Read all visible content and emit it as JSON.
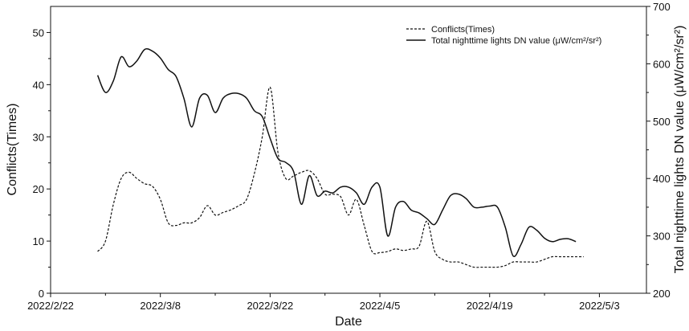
{
  "chart_data": {
    "type": "line",
    "xlabel": "Date",
    "ylabel_left": "Conflicts(Times)",
    "ylabel_right": "Total nighttime lights DN value (μW/cm²/sr²)",
    "x_ticks": [
      "2022/2/22",
      "2022/3/8",
      "2022/3/22",
      "2022/4/5",
      "2022/4/19",
      "2022/5/3"
    ],
    "x_range": [
      "2022/2/22",
      "2022/5/9"
    ],
    "y_left_range": [
      0,
      55
    ],
    "y_left_ticks": [
      0,
      10,
      20,
      30,
      40,
      50
    ],
    "y_right_range": [
      200,
      700
    ],
    "y_right_ticks": [
      200,
      300,
      400,
      500,
      600,
      700
    ],
    "legend_position": "top-right",
    "grid": false,
    "series": [
      {
        "name": "Conflicts(Times)",
        "axis": "left",
        "style": "dashed",
        "points": [
          [
            "2022/2/28",
            8
          ],
          [
            "2022/3/1",
            10
          ],
          [
            "2022/3/2",
            17
          ],
          [
            "2022/3/3",
            22
          ],
          [
            "2022/3/4",
            23.2
          ],
          [
            "2022/3/5",
            22
          ],
          [
            "2022/3/6",
            21
          ],
          [
            "2022/3/7",
            20.5
          ],
          [
            "2022/3/8",
            18
          ],
          [
            "2022/3/9",
            13.5
          ],
          [
            "2022/3/10",
            13
          ],
          [
            "2022/3/11",
            13.5
          ],
          [
            "2022/3/12",
            13.5
          ],
          [
            "2022/3/13",
            14.5
          ],
          [
            "2022/3/14",
            16.8
          ],
          [
            "2022/3/15",
            15
          ],
          [
            "2022/3/16",
            15.5
          ],
          [
            "2022/3/17",
            16
          ],
          [
            "2022/3/18",
            16.8
          ],
          [
            "2022/3/19",
            18
          ],
          [
            "2022/3/20",
            23
          ],
          [
            "2022/3/21",
            30
          ],
          [
            "2022/3/22",
            39.5
          ],
          [
            "2022/3/23",
            27
          ],
          [
            "2022/3/24",
            22
          ],
          [
            "2022/3/25",
            22.5
          ],
          [
            "2022/3/26",
            23.2
          ],
          [
            "2022/3/27",
            23.5
          ],
          [
            "2022/3/28",
            22
          ],
          [
            "2022/3/29",
            19
          ],
          [
            "2022/3/30",
            19
          ],
          [
            "2022/3/31",
            18.5
          ],
          [
            "2022/4/1",
            15
          ],
          [
            "2022/4/2",
            18
          ],
          [
            "2022/4/3",
            13
          ],
          [
            "2022/4/4",
            8
          ],
          [
            "2022/4/5",
            7.8
          ],
          [
            "2022/4/6",
            8
          ],
          [
            "2022/4/7",
            8.5
          ],
          [
            "2022/4/8",
            8.2
          ],
          [
            "2022/4/9",
            8.5
          ],
          [
            "2022/4/10",
            9
          ],
          [
            "2022/4/11",
            13.8
          ],
          [
            "2022/4/12",
            8
          ],
          [
            "2022/4/13",
            6.5
          ],
          [
            "2022/4/14",
            6
          ],
          [
            "2022/4/15",
            6
          ],
          [
            "2022/4/16",
            5.5
          ],
          [
            "2022/4/17",
            5
          ],
          [
            "2022/4/18",
            5
          ],
          [
            "2022/4/19",
            5
          ],
          [
            "2022/4/20",
            5
          ],
          [
            "2022/4/21",
            5.3
          ],
          [
            "2022/4/22",
            6
          ],
          [
            "2022/4/23",
            6
          ],
          [
            "2022/4/24",
            6
          ],
          [
            "2022/4/25",
            6
          ],
          [
            "2022/4/26",
            6.5
          ],
          [
            "2022/4/27",
            7
          ],
          [
            "2022/4/28",
            7
          ],
          [
            "2022/4/29",
            7
          ],
          [
            "2022/4/30",
            7
          ],
          [
            "2022/5/1",
            7
          ]
        ]
      },
      {
        "name": "Total nighttime lights DN value (μW/cm²/sr²)",
        "axis": "right",
        "style": "solid",
        "points": [
          [
            "2022/2/28",
            580
          ],
          [
            "2022/3/1",
            550
          ],
          [
            "2022/3/2",
            570
          ],
          [
            "2022/3/3",
            612
          ],
          [
            "2022/3/4",
            595
          ],
          [
            "2022/3/5",
            605
          ],
          [
            "2022/3/6",
            625
          ],
          [
            "2022/3/7",
            622
          ],
          [
            "2022/3/8",
            610
          ],
          [
            "2022/3/9",
            590
          ],
          [
            "2022/3/10",
            578
          ],
          [
            "2022/3/11",
            540
          ],
          [
            "2022/3/12",
            490
          ],
          [
            "2022/3/13",
            540
          ],
          [
            "2022/3/14",
            545
          ],
          [
            "2022/3/15",
            515
          ],
          [
            "2022/3/16",
            540
          ],
          [
            "2022/3/17",
            548
          ],
          [
            "2022/3/18",
            548
          ],
          [
            "2022/3/19",
            540
          ],
          [
            "2022/3/20",
            518
          ],
          [
            "2022/3/21",
            508
          ],
          [
            "2022/3/22",
            470
          ],
          [
            "2022/3/23",
            435
          ],
          [
            "2022/3/24",
            428
          ],
          [
            "2022/3/25",
            412
          ],
          [
            "2022/3/26",
            355
          ],
          [
            "2022/3/27",
            405
          ],
          [
            "2022/3/28",
            370
          ],
          [
            "2022/3/29",
            378
          ],
          [
            "2022/3/30",
            375
          ],
          [
            "2022/3/31",
            385
          ],
          [
            "2022/4/1",
            385
          ],
          [
            "2022/4/2",
            375
          ],
          [
            "2022/4/3",
            355
          ],
          [
            "2022/4/4",
            385
          ],
          [
            "2022/4/5",
            385
          ],
          [
            "2022/4/6",
            300
          ],
          [
            "2022/4/7",
            350
          ],
          [
            "2022/4/8",
            360
          ],
          [
            "2022/4/9",
            345
          ],
          [
            "2022/4/10",
            340
          ],
          [
            "2022/4/11",
            330
          ],
          [
            "2022/4/12",
            320
          ],
          [
            "2022/4/13",
            345
          ],
          [
            "2022/4/14",
            370
          ],
          [
            "2022/4/15",
            373
          ],
          [
            "2022/4/16",
            365
          ],
          [
            "2022/4/17",
            350
          ],
          [
            "2022/4/18",
            350
          ],
          [
            "2022/4/19",
            352
          ],
          [
            "2022/4/20",
            350
          ],
          [
            "2022/4/21",
            315
          ],
          [
            "2022/4/22",
            265
          ],
          [
            "2022/4/23",
            285
          ],
          [
            "2022/4/24",
            315
          ],
          [
            "2022/4/25",
            310
          ],
          [
            "2022/4/26",
            296
          ],
          [
            "2022/4/27",
            290
          ],
          [
            "2022/4/28",
            294
          ],
          [
            "2022/4/29",
            295
          ],
          [
            "2022/4/30",
            290
          ]
        ]
      }
    ]
  }
}
